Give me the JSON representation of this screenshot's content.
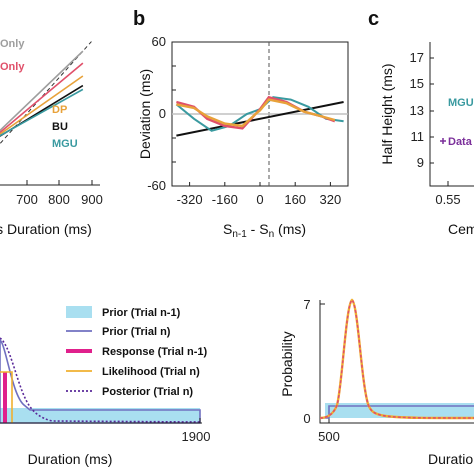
{
  "chart_data": [
    {
      "panel": "a",
      "type": "line",
      "xlabel": "Duration (ms)",
      "xlabel_visible": "s Duration (ms)",
      "xticks": [
        700,
        800,
        900
      ],
      "xlim": [
        600,
        920
      ],
      "ylim": [
        600,
        920
      ],
      "labels": [
        {
          "text": "Only",
          "color": "#9e9e9e"
        },
        {
          "text": "Only",
          "color": "#e0506a"
        },
        {
          "text": "DP",
          "color": "#e8a23a"
        },
        {
          "text": "BU",
          "color": "#111111"
        },
        {
          "text": "MGU",
          "color": "#3a9aa0"
        }
      ],
      "series": [
        {
          "color": "#9e9e9e",
          "x": [
            600,
            880
          ],
          "y": [
            640,
            880
          ]
        },
        {
          "color": "#e0506a",
          "x": [
            600,
            880
          ],
          "y": [
            645,
            855
          ]
        },
        {
          "color": "#e8a23a",
          "x": [
            600,
            880
          ],
          "y": [
            652,
            828
          ]
        },
        {
          "color": "#111111",
          "x": [
            600,
            880
          ],
          "y": [
            655,
            808
          ]
        },
        {
          "color": "#3a9aa0",
          "x": [
            600,
            880
          ],
          "y": [
            660,
            800
          ]
        }
      ],
      "diagonal": {
        "x": [
          600,
          900
        ],
        "y": [
          600,
          900
        ]
      }
    },
    {
      "panel": "b",
      "type": "line",
      "ylabel": "Deviation (ms)",
      "xlabel_main": "S",
      "xlabel_sub1": "n-1",
      "xlabel_mid": " - S",
      "xlabel_sub2": "n",
      "xlabel_end": " (ms)",
      "xlim": [
        -400,
        400
      ],
      "ylim": [
        -60,
        60
      ],
      "xticks": [
        -320,
        -160,
        0,
        160,
        320
      ],
      "xticklabels": [
        "-320",
        "-160",
        "0",
        "160",
        "320"
      ],
      "yticks": [
        -60,
        -40,
        -20,
        0,
        20,
        40,
        60
      ],
      "series": [
        {
          "color": "#c0c0c0",
          "x": [
            -400,
            400
          ],
          "y": [
            0,
            0
          ]
        },
        {
          "color": "#111111",
          "x": [
            -380,
            380
          ],
          "y": [
            -18,
            10
          ]
        },
        {
          "color": "#3a9aa0",
          "x": [
            -380,
            -300,
            -220,
            -140,
            -60,
            0,
            60,
            140,
            220,
            300,
            380
          ],
          "y": [
            8,
            -4,
            -14,
            -10,
            0,
            4,
            14,
            12,
            6,
            -4,
            -6
          ]
        },
        {
          "color": "#e0506a",
          "x": [
            -380,
            -300,
            -240,
            -160,
            -80,
            -20,
            0,
            40,
            120,
            200,
            280,
            340
          ],
          "y": [
            10,
            6,
            -4,
            -10,
            -12,
            0,
            4,
            14,
            10,
            2,
            -2,
            -6
          ]
        },
        {
          "color": "#e8a23a",
          "x": [
            -380,
            -300,
            -240,
            -160,
            -80,
            -20,
            0,
            40,
            120,
            200,
            280,
            340
          ],
          "y": [
            8,
            5,
            -2,
            -8,
            -10,
            0,
            3,
            12,
            9,
            2,
            -2,
            -5
          ]
        }
      ]
    },
    {
      "panel": "c",
      "type": "line",
      "ylabel": "Half Height (ms)",
      "xlabel_visible": "Cem",
      "xticks_visible": [
        "0.55",
        "1"
      ],
      "yticks": [
        "17",
        "15",
        "13",
        "11",
        "9",
        "7",
        "5"
      ],
      "labels": [
        {
          "text": "MGU",
          "color": "#3a9aa0"
        },
        {
          "text": "Data",
          "color": "#7b2f9a"
        }
      ]
    },
    {
      "panel": "d",
      "type": "area",
      "xlabel": "Duration (ms)",
      "xticks": [
        1900
      ],
      "legend": [
        {
          "label": "Prior (Trial n-1)",
          "color": "#a9dff0",
          "style": "patch"
        },
        {
          "label": "Prior (Trial n)",
          "color": "#7070c0",
          "style": "line"
        },
        {
          "label": "Response (Trial n-1)",
          "color": "#e0208c",
          "style": "thick"
        },
        {
          "label": "Likelihood (Trial n)",
          "color": "#f0b030",
          "style": "line"
        },
        {
          "label": "Posterior (Trial n)",
          "color": "#5a2a9a",
          "style": "dotted"
        }
      ]
    },
    {
      "panel": "e",
      "type": "area",
      "ylabel": "Probability",
      "xlabel_visible": "Duratio",
      "xticks": [
        500
      ],
      "yticks": [
        0,
        7
      ],
      "peak_x": 640,
      "peak_y": 7
    }
  ],
  "panel_letters": {
    "b": "b",
    "c": "c"
  }
}
